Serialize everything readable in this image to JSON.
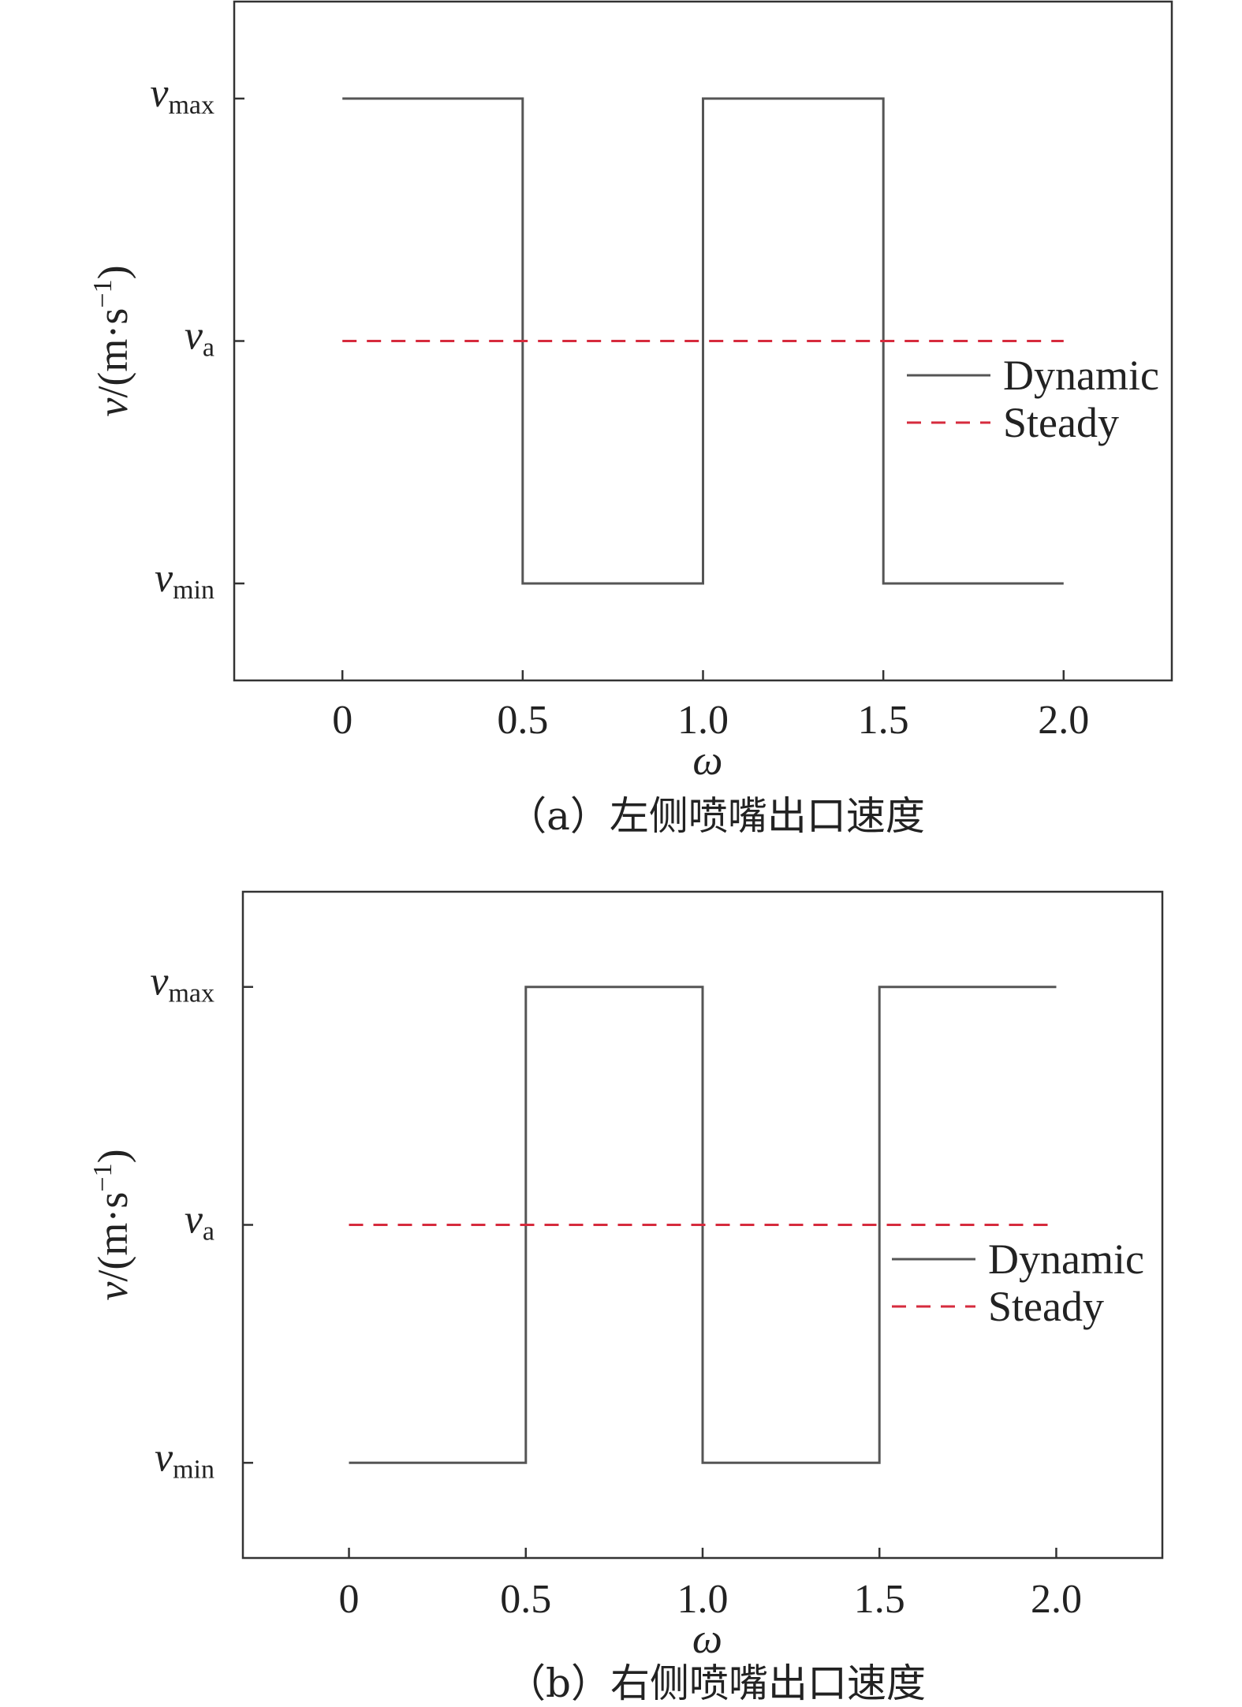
{
  "chart_data": [
    {
      "type": "line",
      "caption": "（a）左侧喷嘴出口速度",
      "xlabel": "ω",
      "ylabel": {
        "var": "v",
        "unit_pre": "/(m·s",
        "unit_sup": "−1",
        "unit_post": ")"
      },
      "xlim": [
        -0.3,
        2.3
      ],
      "x_ticks": [
        0,
        0.5,
        1.0,
        1.5,
        2.0
      ],
      "x_tick_labels": [
        "0",
        "0.5",
        "1.0",
        "1.5",
        "2.0"
      ],
      "y_ticks": [
        {
          "var": "v",
          "sub": "min"
        },
        {
          "var": "v",
          "sub": "a"
        },
        {
          "var": "v",
          "sub": "max"
        }
      ],
      "grid": false,
      "legend_position": "center-right",
      "series": [
        {
          "name": "Dynamic",
          "style": "solid",
          "color": "#555555",
          "x": [
            0,
            0.5,
            0.5,
            1.0,
            1.0,
            1.5,
            1.5,
            2.0
          ],
          "y": [
            "max",
            "max",
            "min",
            "min",
            "max",
            "max",
            "min",
            "min"
          ]
        },
        {
          "name": "Steady",
          "style": "dashed",
          "color": "#d62b3d",
          "x": [
            0,
            2.0
          ],
          "y": [
            "a",
            "a"
          ]
        }
      ]
    },
    {
      "type": "line",
      "caption": "（b）右侧喷嘴出口速度",
      "xlabel": "ω",
      "ylabel": {
        "var": "v",
        "unit_pre": "/(m·s",
        "unit_sup": "−1",
        "unit_post": ")"
      },
      "xlim": [
        -0.3,
        2.3
      ],
      "x_ticks": [
        0,
        0.5,
        1.0,
        1.5,
        2.0
      ],
      "x_tick_labels": [
        "0",
        "0.5",
        "1.0",
        "1.5",
        "2.0"
      ],
      "y_ticks": [
        {
          "var": "v",
          "sub": "min"
        },
        {
          "var": "v",
          "sub": "a"
        },
        {
          "var": "v",
          "sub": "max"
        }
      ],
      "grid": false,
      "legend_position": "center-right",
      "series": [
        {
          "name": "Dynamic",
          "style": "solid",
          "color": "#555555",
          "x": [
            0,
            0.5,
            0.5,
            1.0,
            1.0,
            1.5,
            1.5,
            2.0
          ],
          "y": [
            "min",
            "min",
            "max",
            "max",
            "min",
            "min",
            "max",
            "max"
          ]
        },
        {
          "name": "Steady",
          "style": "dashed",
          "color": "#d62b3d",
          "x": [
            0,
            2.0
          ],
          "y": [
            "a",
            "a"
          ]
        }
      ]
    }
  ]
}
